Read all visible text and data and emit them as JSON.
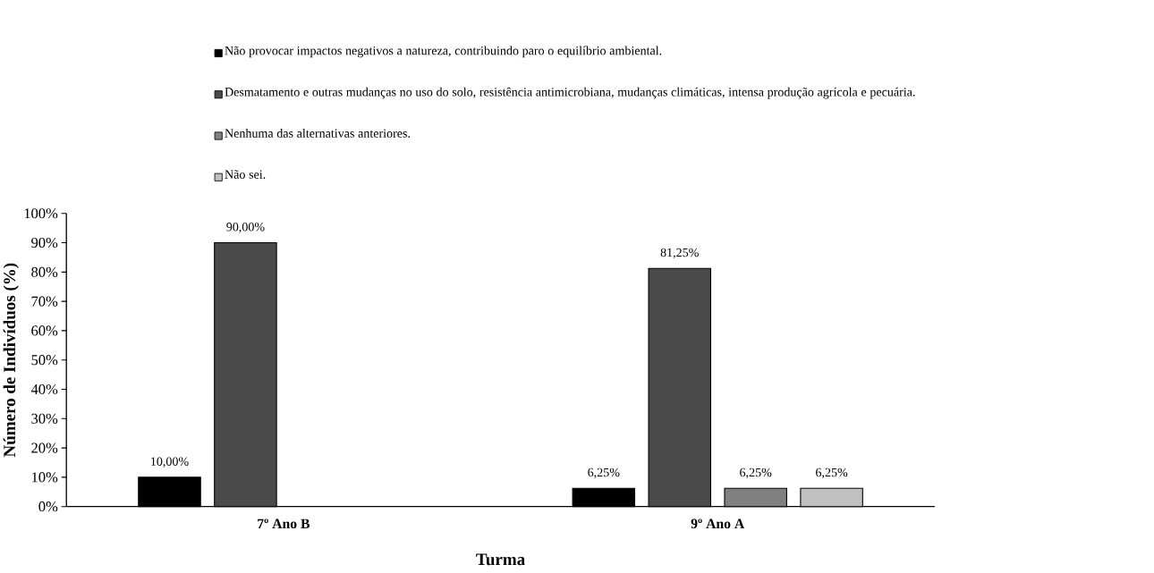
{
  "chart_data": {
    "type": "bar",
    "xlabel": "Turma",
    "ylabel": "Número de Indivíduos (%)",
    "categories": [
      "7º Ano B",
      "9º Ano A"
    ],
    "series": [
      {
        "name": "Não provocar impactos negativos a natureza, contribuindo paro o equilíbrio ambiental.",
        "color": "#000000",
        "values": [
          10,
          6.25
        ],
        "value_labels": [
          "10,00%",
          "6,25%"
        ]
      },
      {
        "name": "Desmatamento e outras mudanças no uso do solo, resistência antimicrobiana, mudanças climáticas, intensa produção agrícola e pecuária.",
        "color": "#4a4a4a",
        "values": [
          90,
          81.25
        ],
        "value_labels": [
          "90,00%",
          "81,25%"
        ]
      },
      {
        "name": "Nenhuma das alternativas anteriores.",
        "color": "#808080",
        "values": [
          null,
          6.25
        ],
        "value_labels": [
          null,
          "6,25%"
        ]
      },
      {
        "name": "Não sei.",
        "color": "#c0c0c0",
        "values": [
          null,
          6.25
        ],
        "value_labels": [
          null,
          "6,25%"
        ]
      }
    ],
    "ylim": [
      0,
      100
    ],
    "yticks": [
      {
        "value": 0,
        "label": "0%"
      },
      {
        "value": 10,
        "label": "10%"
      },
      {
        "value": 20,
        "label": "20%"
      },
      {
        "value": 30,
        "label": "30%"
      },
      {
        "value": 40,
        "label": "40%"
      },
      {
        "value": 50,
        "label": "50%"
      },
      {
        "value": 60,
        "label": "60%"
      },
      {
        "value": 70,
        "label": "70%"
      },
      {
        "value": 80,
        "label": "80%"
      },
      {
        "value": 90,
        "label": "90%"
      },
      {
        "value": 100,
        "label": "100%"
      }
    ],
    "legend": "top"
  }
}
